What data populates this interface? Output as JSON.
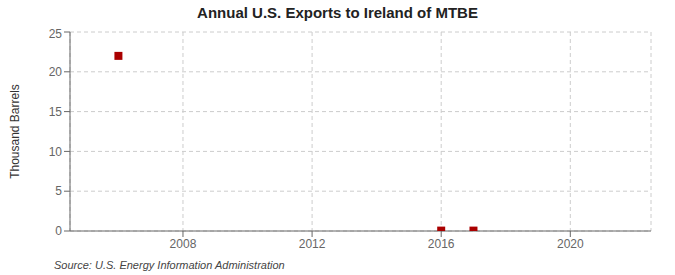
{
  "chart_data": {
    "type": "scatter",
    "title": "Annual U.S. Exports to Ireland of MTBE",
    "ylabel": "Thousand Barrels",
    "annotation": "Source: U.S. Energy Information Administration",
    "x": [
      2006,
      2016,
      2017
    ],
    "values": [
      22,
      0.05,
      0.05
    ],
    "color": "#aa0000",
    "marker": "square",
    "xlim": [
      2004.5,
      2022.5
    ],
    "ylim": [
      0,
      25
    ],
    "xticks": [
      2008,
      2012,
      2016,
      2020
    ],
    "yticks": [
      0,
      5,
      10,
      15,
      20,
      25
    ],
    "grid": true
  }
}
